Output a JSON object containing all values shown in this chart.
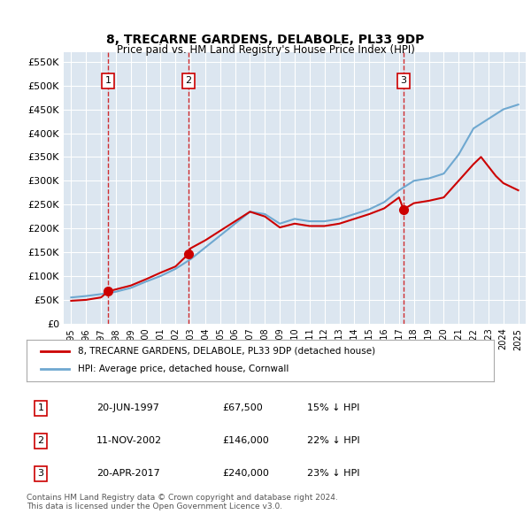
{
  "title": "8, TRECARNE GARDENS, DELABOLE, PL33 9DP",
  "subtitle": "Price paid vs. HM Land Registry's House Price Index (HPI)",
  "background_color": "#ffffff",
  "plot_bg_color": "#dce6f0",
  "grid_color": "#ffffff",
  "sale_dates": [
    "1997-06-20",
    "2002-11-11",
    "2017-04-20"
  ],
  "sale_prices": [
    67500,
    146000,
    240000
  ],
  "sale_labels": [
    "1",
    "2",
    "3"
  ],
  "hpi_years": [
    1995,
    1996,
    1997,
    1998,
    1999,
    2000,
    2001,
    2002,
    2003,
    2004,
    2005,
    2006,
    2007,
    2008,
    2009,
    2010,
    2011,
    2012,
    2013,
    2014,
    2015,
    2016,
    2017,
    2018,
    2019,
    2020,
    2021,
    2022,
    2023,
    2024,
    2025
  ],
  "hpi_values": [
    55000,
    58000,
    62000,
    67000,
    75000,
    88000,
    100000,
    115000,
    135000,
    160000,
    185000,
    210000,
    235000,
    230000,
    210000,
    220000,
    215000,
    215000,
    220000,
    230000,
    240000,
    255000,
    280000,
    300000,
    305000,
    315000,
    355000,
    410000,
    430000,
    450000,
    460000
  ],
  "property_years": [
    1995,
    1996,
    1997,
    1997.47,
    1998,
    1999,
    2000,
    2001,
    2002,
    2002.86,
    2003,
    2004,
    2005,
    2006,
    2007,
    2008,
    2009,
    2010,
    2011,
    2012,
    2013,
    2014,
    2015,
    2016,
    2017,
    2017.3,
    2018,
    2019,
    2020,
    2021,
    2022,
    2022.5,
    2023,
    2023.5,
    2024,
    2025
  ],
  "property_values": [
    48000,
    50000,
    55000,
    67500,
    72000,
    80000,
    93000,
    107000,
    120000,
    146000,
    158000,
    175000,
    195000,
    215000,
    235000,
    225000,
    202000,
    210000,
    205000,
    205000,
    210000,
    220000,
    230000,
    242000,
    265000,
    240000,
    253000,
    258000,
    265000,
    300000,
    335000,
    350000,
    330000,
    310000,
    295000,
    280000
  ],
  "ylabel_ticks": [
    0,
    50000,
    100000,
    150000,
    200000,
    250000,
    300000,
    350000,
    400000,
    450000,
    500000,
    550000
  ],
  "ylabel_labels": [
    "£0",
    "£50K",
    "£100K",
    "£150K",
    "£200K",
    "£250K",
    "£300K",
    "£350K",
    "£400K",
    "£450K",
    "£500K",
    "£550K"
  ],
  "xlim": [
    1994.5,
    2025.5
  ],
  "ylim": [
    0,
    570000
  ],
  "x_ticks": [
    1995,
    1996,
    1997,
    1998,
    1999,
    2000,
    2001,
    2002,
    2003,
    2004,
    2005,
    2006,
    2007,
    2008,
    2009,
    2010,
    2011,
    2012,
    2013,
    2014,
    2015,
    2016,
    2017,
    2018,
    2019,
    2020,
    2021,
    2022,
    2023,
    2024,
    2025
  ],
  "hpi_color": "#6fa8d0",
  "property_color": "#cc0000",
  "dashed_line_color": "#cc0000",
  "marker_color": "#cc0000",
  "legend_label_property": "8, TRECARNE GARDENS, DELABOLE, PL33 9DP (detached house)",
  "legend_label_hpi": "HPI: Average price, detached house, Cornwall",
  "sale_info": [
    {
      "num": "1",
      "date": "20-JUN-1997",
      "price": "£67,500",
      "hpi": "15% ↓ HPI"
    },
    {
      "num": "2",
      "date": "11-NOV-2002",
      "price": "£146,000",
      "hpi": "22% ↓ HPI"
    },
    {
      "num": "3",
      "date": "20-APR-2017",
      "price": "£240,000",
      "hpi": "23% ↓ HPI"
    }
  ],
  "footer": "Contains HM Land Registry data © Crown copyright and database right 2024.\nThis data is licensed under the Open Government Licence v3.0."
}
